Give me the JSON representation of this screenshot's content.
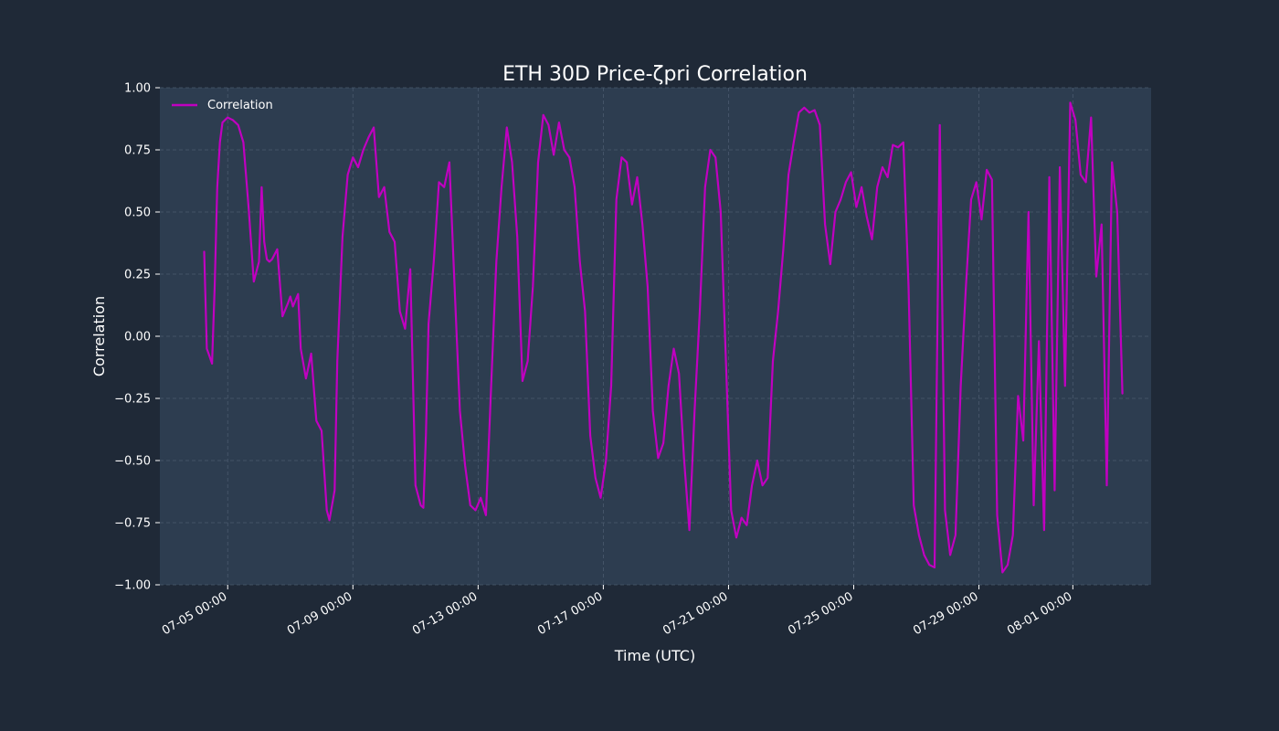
{
  "chart_data": {
    "type": "line",
    "title": "ETH 30D Price-ζpri Correlation",
    "xlabel": "Time (UTC)",
    "ylabel": "Correlation",
    "ylim": [
      -1.0,
      1.0
    ],
    "xlim": [
      "2026-07-02 20:00",
      "2026-08-03 12:00"
    ],
    "yticks": [
      1.0,
      0.75,
      0.5,
      0.25,
      0.0,
      -0.25,
      -0.5,
      -0.75,
      -1.0
    ],
    "ytick_labels": [
      "1.00",
      "0.75",
      "0.50",
      "0.25",
      "0.00",
      "−0.25",
      "−0.50",
      "−0.75",
      "−1.00"
    ],
    "xticks": [
      "2026-07-05 00:00",
      "2026-07-09 00:00",
      "2026-07-13 00:00",
      "2026-07-17 00:00",
      "2026-07-21 00:00",
      "2026-07-25 00:00",
      "2026-07-29 00:00",
      "2026-08-01 00:00"
    ],
    "xtick_labels": [
      "07-05 00:00",
      "07-09 00:00",
      "07-13 00:00",
      "07-17 00:00",
      "07-21 00:00",
      "07-25 00:00",
      "07-29 00:00",
      "08-01 00:00"
    ],
    "grid": true,
    "legend_position": "top-left",
    "colors": {
      "background": "#1f2937",
      "plot_area": "#2d3d50",
      "line": "#c000c0",
      "text": "#ffffff",
      "grid": "#4a5a6e"
    },
    "series": [
      {
        "name": "Correlation",
        "x": [
          "2026-07-04 06:00",
          "2026-07-04 08:00",
          "2026-07-04 10:00",
          "2026-07-04 12:00",
          "2026-07-04 14:00",
          "2026-07-04 16:00",
          "2026-07-04 18:00",
          "2026-07-04 20:00",
          "2026-07-05 00:00",
          "2026-07-05 04:00",
          "2026-07-05 08:00",
          "2026-07-05 12:00",
          "2026-07-05 16:00",
          "2026-07-05 20:00",
          "2026-07-06 00:00",
          "2026-07-06 02:00",
          "2026-07-06 04:00",
          "2026-07-06 06:00",
          "2026-07-06 08:00",
          "2026-07-06 10:00",
          "2026-07-06 14:00",
          "2026-07-06 18:00",
          "2026-07-06 22:00",
          "2026-07-07 00:00",
          "2026-07-07 02:00",
          "2026-07-07 06:00",
          "2026-07-07 08:00",
          "2026-07-07 12:00",
          "2026-07-07 14:00",
          "2026-07-07 16:00",
          "2026-07-07 20:00",
          "2026-07-08 00:00",
          "2026-07-08 04:00",
          "2026-07-08 06:00",
          "2026-07-08 10:00",
          "2026-07-08 12:00",
          "2026-07-08 16:00",
          "2026-07-08 20:00",
          "2026-07-09 00:00",
          "2026-07-09 04:00",
          "2026-07-09 08:00",
          "2026-07-09 12:00",
          "2026-07-09 16:00",
          "2026-07-09 20:00",
          "2026-07-10 00:00",
          "2026-07-10 04:00",
          "2026-07-10 08:00",
          "2026-07-10 12:00",
          "2026-07-10 16:00",
          "2026-07-10 20:00",
          "2026-07-11 00:00",
          "2026-07-11 04:00",
          "2026-07-11 06:00",
          "2026-07-11 08:00",
          "2026-07-11 10:00",
          "2026-07-11 14:00",
          "2026-07-11 18:00",
          "2026-07-11 22:00",
          "2026-07-12 02:00",
          "2026-07-12 06:00",
          "2026-07-12 10:00",
          "2026-07-12 14:00",
          "2026-07-12 18:00",
          "2026-07-12 22:00",
          "2026-07-13 02:00",
          "2026-07-13 06:00",
          "2026-07-13 10:00",
          "2026-07-13 14:00",
          "2026-07-13 18:00",
          "2026-07-13 22:00",
          "2026-07-14 02:00",
          "2026-07-14 06:00",
          "2026-07-14 10:00",
          "2026-07-14 14:00",
          "2026-07-14 18:00",
          "2026-07-14 22:00",
          "2026-07-15 02:00",
          "2026-07-15 06:00",
          "2026-07-15 10:00",
          "2026-07-15 14:00",
          "2026-07-15 18:00",
          "2026-07-15 22:00",
          "2026-07-16 02:00",
          "2026-07-16 06:00",
          "2026-07-16 10:00",
          "2026-07-16 14:00",
          "2026-07-16 18:00",
          "2026-07-16 22:00",
          "2026-07-17 02:00",
          "2026-07-17 06:00",
          "2026-07-17 10:00",
          "2026-07-17 14:00",
          "2026-07-17 18:00",
          "2026-07-17 22:00",
          "2026-07-18 02:00",
          "2026-07-18 06:00",
          "2026-07-18 10:00",
          "2026-07-18 14:00",
          "2026-07-18 18:00",
          "2026-07-18 22:00",
          "2026-07-19 02:00",
          "2026-07-19 06:00",
          "2026-07-19 10:00",
          "2026-07-19 14:00",
          "2026-07-19 18:00",
          "2026-07-19 22:00",
          "2026-07-20 02:00",
          "2026-07-20 06:00",
          "2026-07-20 10:00",
          "2026-07-20 14:00",
          "2026-07-20 18:00",
          "2026-07-20 22:00",
          "2026-07-21 02:00",
          "2026-07-21 06:00",
          "2026-07-21 10:00",
          "2026-07-21 14:00",
          "2026-07-21 18:00",
          "2026-07-21 22:00",
          "2026-07-22 02:00",
          "2026-07-22 06:00",
          "2026-07-22 10:00",
          "2026-07-22 14:00",
          "2026-07-22 18:00",
          "2026-07-22 22:00",
          "2026-07-23 02:00",
          "2026-07-23 06:00",
          "2026-07-23 10:00",
          "2026-07-23 14:00",
          "2026-07-23 18:00",
          "2026-07-23 22:00",
          "2026-07-24 02:00",
          "2026-07-24 06:00",
          "2026-07-24 10:00",
          "2026-07-24 14:00",
          "2026-07-24 18:00",
          "2026-07-24 22:00",
          "2026-07-25 02:00",
          "2026-07-25 06:00",
          "2026-07-25 10:00",
          "2026-07-25 14:00",
          "2026-07-25 18:00",
          "2026-07-25 22:00",
          "2026-07-26 02:00",
          "2026-07-26 06:00",
          "2026-07-26 10:00",
          "2026-07-26 14:00",
          "2026-07-26 18:00",
          "2026-07-26 22:00",
          "2026-07-27 02:00",
          "2026-07-27 06:00",
          "2026-07-27 10:00",
          "2026-07-27 14:00",
          "2026-07-27 18:00",
          "2026-07-27 22:00",
          "2026-07-28 02:00",
          "2026-07-28 06:00",
          "2026-07-28 10:00",
          "2026-07-28 14:00",
          "2026-07-28 18:00",
          "2026-07-28 22:00",
          "2026-07-29 02:00",
          "2026-07-29 06:00",
          "2026-07-29 10:00",
          "2026-07-29 14:00",
          "2026-07-29 18:00",
          "2026-07-29 22:00",
          "2026-07-30 02:00",
          "2026-07-30 06:00",
          "2026-07-30 10:00",
          "2026-07-30 14:00",
          "2026-07-30 18:00",
          "2026-07-30 22:00",
          "2026-07-31 02:00",
          "2026-07-31 06:00",
          "2026-07-31 10:00",
          "2026-07-31 14:00",
          "2026-07-31 18:00",
          "2026-07-31 22:00",
          "2026-08-01 02:00",
          "2026-08-01 06:00",
          "2026-08-01 10:00",
          "2026-08-01 14:00",
          "2026-08-01 18:00",
          "2026-08-01 22:00",
          "2026-08-02 02:00",
          "2026-08-02 06:00",
          "2026-08-02 10:00",
          "2026-08-02 14:00"
        ],
        "y": [
          0.34,
          -0.05,
          -0.08,
          -0.11,
          0.2,
          0.6,
          0.78,
          0.86,
          0.88,
          0.87,
          0.85,
          0.78,
          0.52,
          0.22,
          0.3,
          0.6,
          0.38,
          0.31,
          0.3,
          0.31,
          0.35,
          0.08,
          0.13,
          0.16,
          0.12,
          0.17,
          -0.05,
          -0.17,
          -0.12,
          -0.07,
          -0.34,
          -0.38,
          -0.7,
          -0.74,
          -0.62,
          -0.1,
          0.4,
          0.65,
          0.72,
          0.68,
          0.75,
          0.8,
          0.84,
          0.56,
          0.6,
          0.42,
          0.38,
          0.1,
          0.03,
          0.27,
          -0.6,
          -0.68,
          -0.69,
          -0.4,
          0.05,
          0.3,
          0.62,
          0.6,
          0.7,
          0.2,
          -0.3,
          -0.52,
          -0.68,
          -0.7,
          -0.65,
          -0.72,
          -0.2,
          0.3,
          0.6,
          0.84,
          0.7,
          0.4,
          -0.18,
          -0.1,
          0.2,
          0.7,
          0.89,
          0.85,
          0.73,
          0.86,
          0.75,
          0.72,
          0.6,
          0.3,
          0.1,
          -0.4,
          -0.57,
          -0.65,
          -0.5,
          -0.2,
          0.55,
          0.72,
          0.7,
          0.53,
          0.64,
          0.45,
          0.2,
          -0.3,
          -0.49,
          -0.43,
          -0.2,
          -0.05,
          -0.15,
          -0.5,
          -0.78,
          -0.3,
          0.1,
          0.6,
          0.75,
          0.72,
          0.5,
          -0.1,
          -0.7,
          -0.81,
          -0.73,
          -0.76,
          -0.6,
          -0.5,
          -0.6,
          -0.57,
          -0.1,
          0.1,
          0.35,
          0.65,
          0.78,
          0.9,
          0.92,
          0.9,
          0.91,
          0.85,
          0.45,
          0.29,
          0.5,
          0.55,
          0.62,
          0.66,
          0.52,
          0.6,
          0.48,
          0.39,
          0.6,
          0.68,
          0.64,
          0.77,
          0.76,
          0.78,
          0.2,
          -0.68,
          -0.8,
          -0.88,
          -0.92,
          -0.93,
          0.85,
          -0.7,
          -0.88,
          -0.8,
          -0.2,
          0.2,
          0.55,
          0.62,
          0.47,
          0.67,
          0.63,
          -0.72,
          -0.95,
          -0.92,
          -0.8,
          -0.24,
          -0.42,
          0.5,
          -0.68,
          -0.02,
          -0.78,
          0.64,
          -0.62,
          0.68,
          -0.2,
          0.94,
          0.87,
          0.65,
          0.62,
          0.88,
          0.24,
          0.45,
          -0.6,
          0.7,
          0.5,
          -0.23
        ]
      }
    ]
  }
}
